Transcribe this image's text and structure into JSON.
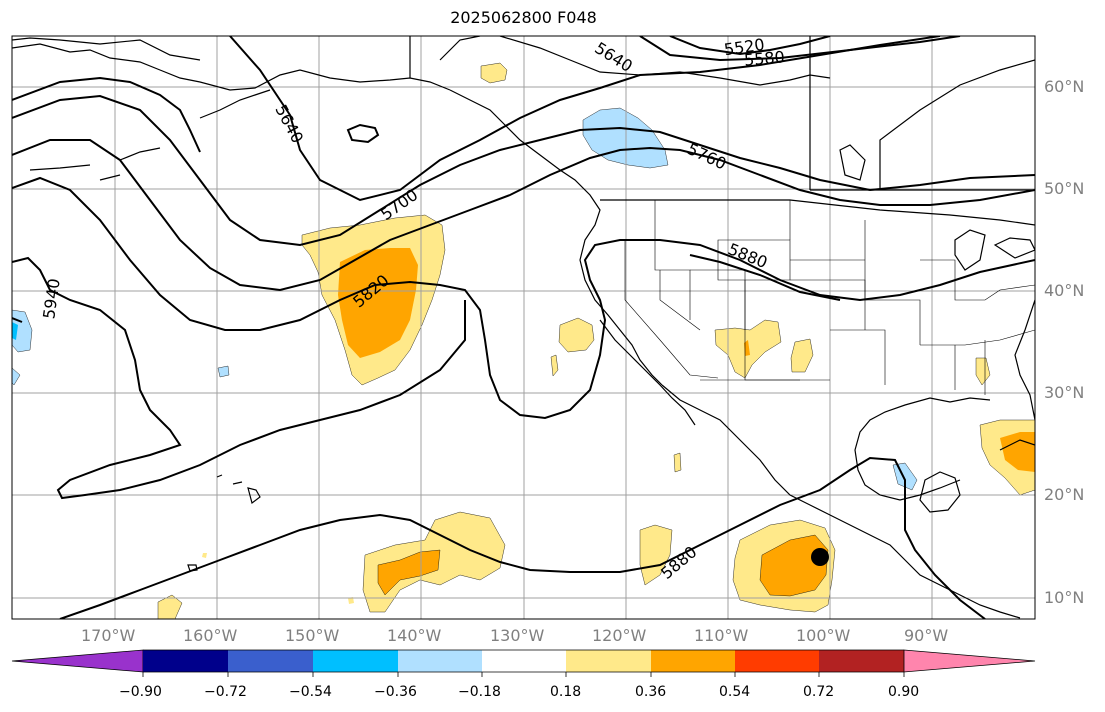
{
  "title": "2025062800 F048",
  "lat_labels": [
    "60°N",
    "50°N",
    "40°N",
    "30°N",
    "20°N",
    "10°N"
  ],
  "lon_labels": [
    "170°W",
    "160°W",
    "150°W",
    "140°W",
    "130°W",
    "120°W",
    "110°W",
    "100°W",
    "90°W"
  ],
  "contour_labels": [
    "5520",
    "5580",
    "5640",
    "5640",
    "5700",
    "5760",
    "5820",
    "5880",
    "5880",
    "5940"
  ],
  "colorbar": {
    "ticks": [
      "−0.90",
      "−0.72",
      "−0.54",
      "−0.36",
      "−0.18",
      "0.18",
      "0.36",
      "0.54",
      "0.72",
      "0.90"
    ],
    "colors": [
      "#9932cc",
      "#00008b",
      "#3a5fcd",
      "#00bfff",
      "#b0e0ff",
      "#ffffff",
      "#ffe98a",
      "#ffa500",
      "#ff3c00",
      "#b22222",
      "#ff85ad"
    ]
  },
  "colors": {
    "light_yellow": "#ffe98a",
    "orange": "#ffa500",
    "light_blue": "#b0e0ff",
    "blue": "#00bfff",
    "grid": "#a0a0a0",
    "axis_text": "#808080"
  },
  "markers": [
    {
      "name": "storm-center",
      "color": "#000000",
      "lon": -100.5,
      "lat": 13.8
    }
  ]
}
